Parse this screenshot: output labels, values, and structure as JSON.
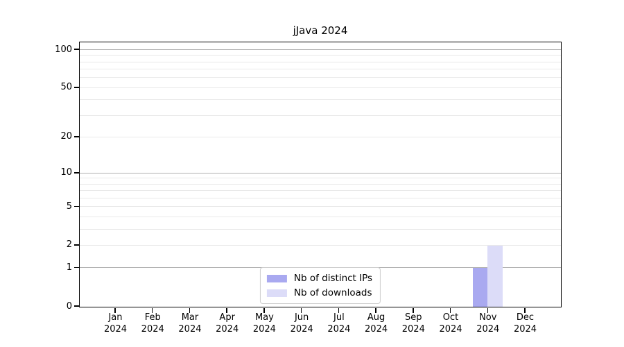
{
  "title": "jJava 2024",
  "colors": {
    "distinct_ips": "#a9a9f0",
    "downloads": "#dcdcf8",
    "grid_major": "#b0b0b0",
    "grid_minor": "#e9e9e9",
    "spine": "#000000",
    "legend_border": "#cccccc",
    "background": "#ffffff"
  },
  "legend": {
    "items": [
      {
        "label": "Nb of distinct IPs",
        "color_key": "distinct_ips"
      },
      {
        "label": "Nb of downloads",
        "color_key": "downloads"
      }
    ],
    "position": "lower center"
  },
  "x_axis": {
    "months": [
      "Jan",
      "Feb",
      "Mar",
      "Apr",
      "May",
      "Jun",
      "Jul",
      "Aug",
      "Sep",
      "Oct",
      "Nov",
      "Dec"
    ],
    "year": "2024"
  },
  "y_axis": {
    "tick_values": [
      0,
      1,
      2,
      5,
      10,
      20,
      50,
      100
    ],
    "tick_labels": [
      "0",
      "1",
      "2",
      "5",
      "10",
      "20",
      "50",
      "100"
    ],
    "major_gridline_values": [
      1,
      10,
      100
    ],
    "minor_gridline_values": [
      2,
      3,
      4,
      5,
      6,
      7,
      8,
      9,
      20,
      30,
      40,
      50,
      60,
      70,
      80,
      90
    ]
  },
  "chart_data": {
    "type": "bar",
    "title": "jJava 2024",
    "categories": [
      "Jan 2024",
      "Feb 2024",
      "Mar 2024",
      "Apr 2024",
      "May 2024",
      "Jun 2024",
      "Jul 2024",
      "Aug 2024",
      "Sep 2024",
      "Oct 2024",
      "Nov 2024",
      "Dec 2024"
    ],
    "series": [
      {
        "name": "Nb of distinct IPs",
        "color_key": "distinct_ips",
        "values": [
          0,
          0,
          0,
          0,
          0,
          0,
          0,
          0,
          0,
          0,
          1,
          0
        ]
      },
      {
        "name": "Nb of downloads",
        "color_key": "downloads",
        "values": [
          0,
          0,
          0,
          0,
          0,
          0,
          0,
          0,
          0,
          0,
          2,
          0
        ]
      }
    ],
    "xlabel": "",
    "ylabel": "",
    "yscale": "log1p",
    "ylim": [
      0,
      113
    ],
    "y_ticks": [
      0,
      1,
      2,
      5,
      10,
      20,
      50,
      100
    ],
    "grid": "horizontal",
    "legend_position": "lower center"
  }
}
